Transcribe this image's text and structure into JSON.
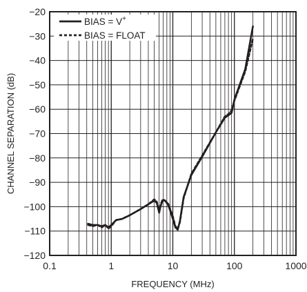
{
  "chart_data": {
    "type": "line",
    "xlabel": "FREQUENCY (MHz)",
    "ylabel": "CHANNEL SEPARATION (dB)",
    "x_scale": "log",
    "xlim": [
      0.1,
      1000
    ],
    "ylim": [
      -120,
      -20
    ],
    "x_ticks": [
      0.1,
      1,
      10,
      100,
      1000
    ],
    "x_tick_labels": [
      "0.1",
      "1",
      "10",
      "100",
      "1000"
    ],
    "y_ticks": [
      -120,
      -110,
      -100,
      -90,
      -80,
      -70,
      -60,
      -50,
      -40,
      -30,
      -20
    ],
    "y_tick_labels": [
      "−120",
      "−110",
      "−100",
      "−90",
      "−80",
      "−70",
      "−60",
      "−50",
      "−40",
      "−30",
      "−20"
    ],
    "grid": true,
    "legend_position": "top-left",
    "series": [
      {
        "name": "BIAS = V+",
        "legend_main": "BIAS = V",
        "legend_sup": "+",
        "style": "solid",
        "color": "#231f20",
        "x": [
          0.42,
          0.5,
          0.6,
          0.7,
          0.8,
          0.9,
          1.0,
          1.2,
          1.5,
          2.0,
          3.0,
          4.0,
          5.0,
          5.5,
          6.0,
          6.3,
          6.8,
          7.5,
          8.5,
          10.0,
          11.0,
          12.0,
          13.0,
          15.0,
          20.0,
          30.0,
          50.0,
          70.0,
          80.0,
          90.0,
          100.0,
          150.0,
          200.0
        ],
        "y": [
          -107.0,
          -107.5,
          -107.5,
          -108.0,
          -107.5,
          -108.5,
          -107.5,
          -105.5,
          -105.0,
          -103.5,
          -101.0,
          -99.0,
          -97.5,
          -98.5,
          -102.5,
          -100.0,
          -97.5,
          -97.5,
          -99.5,
          -105.0,
          -108.5,
          -109.5,
          -106.0,
          -96.0,
          -87.0,
          -79.5,
          -69.5,
          -63.5,
          -62.5,
          -61.5,
          -56.0,
          -43.5,
          -26.0
        ]
      },
      {
        "name": "BIAS = FLOAT",
        "legend_main": "BIAS = FLOAT",
        "legend_sup": "",
        "style": "dashed",
        "color": "#231f20",
        "x": [
          0.42,
          0.5,
          0.6,
          0.7,
          0.8,
          0.9,
          1.0,
          1.2,
          1.5,
          2.0,
          3.0,
          4.0,
          5.0,
          5.5,
          6.0,
          6.3,
          6.8,
          7.5,
          8.5,
          10.0,
          11.0,
          12.0,
          13.0,
          15.0,
          20.0,
          30.0,
          50.0,
          70.0,
          80.0,
          90.0,
          100.0,
          150.0,
          200.0
        ],
        "y": [
          -107.5,
          -108.0,
          -107.5,
          -108.5,
          -107.5,
          -109.0,
          -108.0,
          -105.5,
          -105.0,
          -103.5,
          -101.0,
          -99.0,
          -97.0,
          -98.0,
          -102.0,
          -99.5,
          -97.0,
          -97.5,
          -99.0,
          -104.0,
          -108.0,
          -109.0,
          -106.5,
          -96.5,
          -86.5,
          -79.0,
          -69.5,
          -63.0,
          -62.0,
          -60.5,
          -56.5,
          -44.5,
          -31.0
        ]
      }
    ]
  }
}
